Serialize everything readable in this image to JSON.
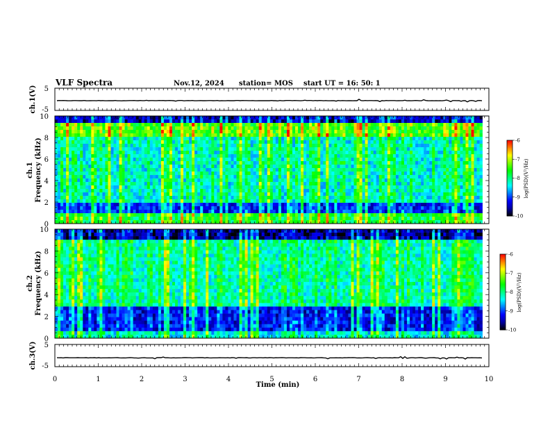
{
  "header": {
    "title": "VLF Spectra",
    "date": "Nov.12, 2024",
    "station": "station= MOS",
    "start_time": "start  UT =   16: 50: 1"
  },
  "chart_data": [
    {
      "type": "line",
      "panel": "ch1-voltage",
      "ylabel": "ch.1(V)",
      "ylim": [
        -5,
        5
      ],
      "yticklabels": [
        "5",
        "-5"
      ],
      "description_level": -0.6
    },
    {
      "type": "heatmap",
      "panel": "ch1-spectrogram",
      "ylabel": "ch.1\nFrequency (kHz)",
      "ylabel_lines": [
        "ch.1",
        "Frequency (kHz)"
      ],
      "ylim": [
        0,
        10
      ],
      "yticklabels": [
        "0",
        "2",
        "4",
        "6",
        "8",
        "10"
      ],
      "colorbar": {
        "label": "log(PSD)(V²/Hz)",
        "range": [
          -10,
          -6
        ],
        "ticklabels": [
          "-6",
          "-7",
          "-8",
          "-9",
          "-10"
        ]
      }
    },
    {
      "type": "heatmap",
      "panel": "ch2-spectrogram",
      "ylabel": "ch.2\nFrequency (kHz)",
      "ylabel_lines": [
        "ch.2",
        "Frequency (kHz)"
      ],
      "ylim": [
        0,
        10
      ],
      "yticklabels": [
        "0",
        "2",
        "4",
        "6",
        "8",
        "10"
      ],
      "colorbar": {
        "label": "log(PSD)(V²/Hz)",
        "range": [
          -10,
          -6
        ],
        "ticklabels": [
          "-6",
          "-7",
          "-8",
          "-9",
          "-10"
        ]
      }
    },
    {
      "type": "line",
      "panel": "ch3-voltage",
      "ylabel": "ch.3(V)",
      "ylim": [
        -5,
        5
      ],
      "yticklabels": [
        "5",
        "-5"
      ],
      "description_level": -1.0
    }
  ],
  "xaxis": {
    "label": "Time (min)",
    "xlim": [
      0,
      10
    ],
    "ticklabels": [
      "0",
      "1",
      "2",
      "3",
      "4",
      "5",
      "6",
      "7",
      "8",
      "9",
      "10"
    ],
    "data_end": 9.85
  },
  "colors": {
    "colormap": [
      "#000000",
      "#0000a0",
      "#0000ff",
      "#0080ff",
      "#00ffff",
      "#00ff80",
      "#00ff00",
      "#80ff00",
      "#ffff00",
      "#ff8000",
      "#ff0000",
      "#ffffff"
    ]
  }
}
